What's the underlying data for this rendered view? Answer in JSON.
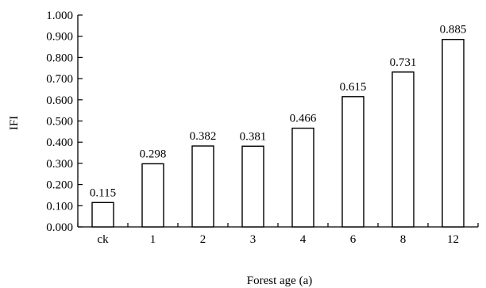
{
  "chart_data": {
    "type": "bar",
    "title": "",
    "xlabel": "Forest age (a)",
    "ylabel": "IFI",
    "categories": [
      "ck",
      "1",
      "2",
      "3",
      "4",
      "6",
      "8",
      "12"
    ],
    "values": [
      0.115,
      0.298,
      0.382,
      0.381,
      0.466,
      0.615,
      0.731,
      0.885
    ],
    "data_labels": [
      "0.115",
      "0.298",
      "0.382",
      "0.381",
      "0.466",
      "0.615",
      "0.731",
      "0.885"
    ],
    "yticks": [
      0.0,
      0.1,
      0.2,
      0.3,
      0.4,
      0.5,
      0.6,
      0.7,
      0.8,
      0.9,
      1.0
    ],
    "ytick_labels": [
      "0.000",
      "0.100",
      "0.200",
      "0.300",
      "0.400",
      "0.500",
      "0.600",
      "0.700",
      "0.800",
      "0.900",
      "1.000"
    ],
    "ylim": [
      0,
      1.0
    ],
    "grid": false,
    "legend": "none",
    "colors": {
      "bar_fill": "#ffffff",
      "bar_stroke": "#000000",
      "axis": "#000000"
    }
  }
}
